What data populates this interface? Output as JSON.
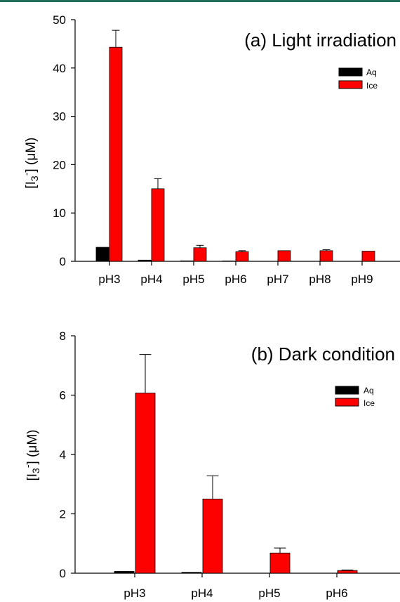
{
  "colors": {
    "aq": "#000000",
    "ice": "#ff0000",
    "topbar": "#1f6e58"
  },
  "chart_data": [
    {
      "type": "bar",
      "title": "(a) Light irradiation",
      "ylabel": "[I3-] (μM)",
      "ylabel_parts": {
        "pre": "[I",
        "sub": "3",
        "sup": "-",
        "post": "] (μM)"
      },
      "ylim": [
        0,
        50
      ],
      "yticks": [
        0,
        10,
        20,
        30,
        40,
        50
      ],
      "categories": [
        "pH3",
        "pH4",
        "pH5",
        "pH6",
        "pH7",
        "pH8",
        "pH9"
      ],
      "series": [
        {
          "name": "Aq",
          "values": [
            2.9,
            0.25,
            0.1,
            0.08,
            0,
            0,
            0
          ],
          "errors": [
            0,
            0,
            0,
            0,
            0,
            0,
            0
          ]
        },
        {
          "name": "Ice",
          "values": [
            44.3,
            15.0,
            2.8,
            2.0,
            2.2,
            2.2,
            2.1
          ],
          "errors": [
            3.5,
            2.1,
            0.5,
            0.2,
            0,
            0.2,
            0
          ]
        }
      ],
      "legend": "top-right"
    },
    {
      "type": "bar",
      "title": "(b) Dark condition",
      "ylabel": "[I3-] (μM)",
      "ylabel_parts": {
        "pre": "[I",
        "sub": "3",
        "sup": "-",
        "post": "] (μM)"
      },
      "ylim": [
        0,
        8
      ],
      "yticks": [
        0,
        2,
        4,
        6,
        8
      ],
      "categories": [
        "pH3",
        "pH4",
        "pH5",
        "pH6"
      ],
      "series": [
        {
          "name": "Aq",
          "values": [
            0.06,
            0.03,
            0,
            0
          ],
          "errors": [
            0,
            0,
            0,
            0
          ]
        },
        {
          "name": "Ice",
          "values": [
            6.07,
            2.5,
            0.68,
            0.09
          ],
          "errors": [
            1.3,
            0.78,
            0.17,
            0.02
          ]
        }
      ],
      "legend": "top-right"
    }
  ]
}
